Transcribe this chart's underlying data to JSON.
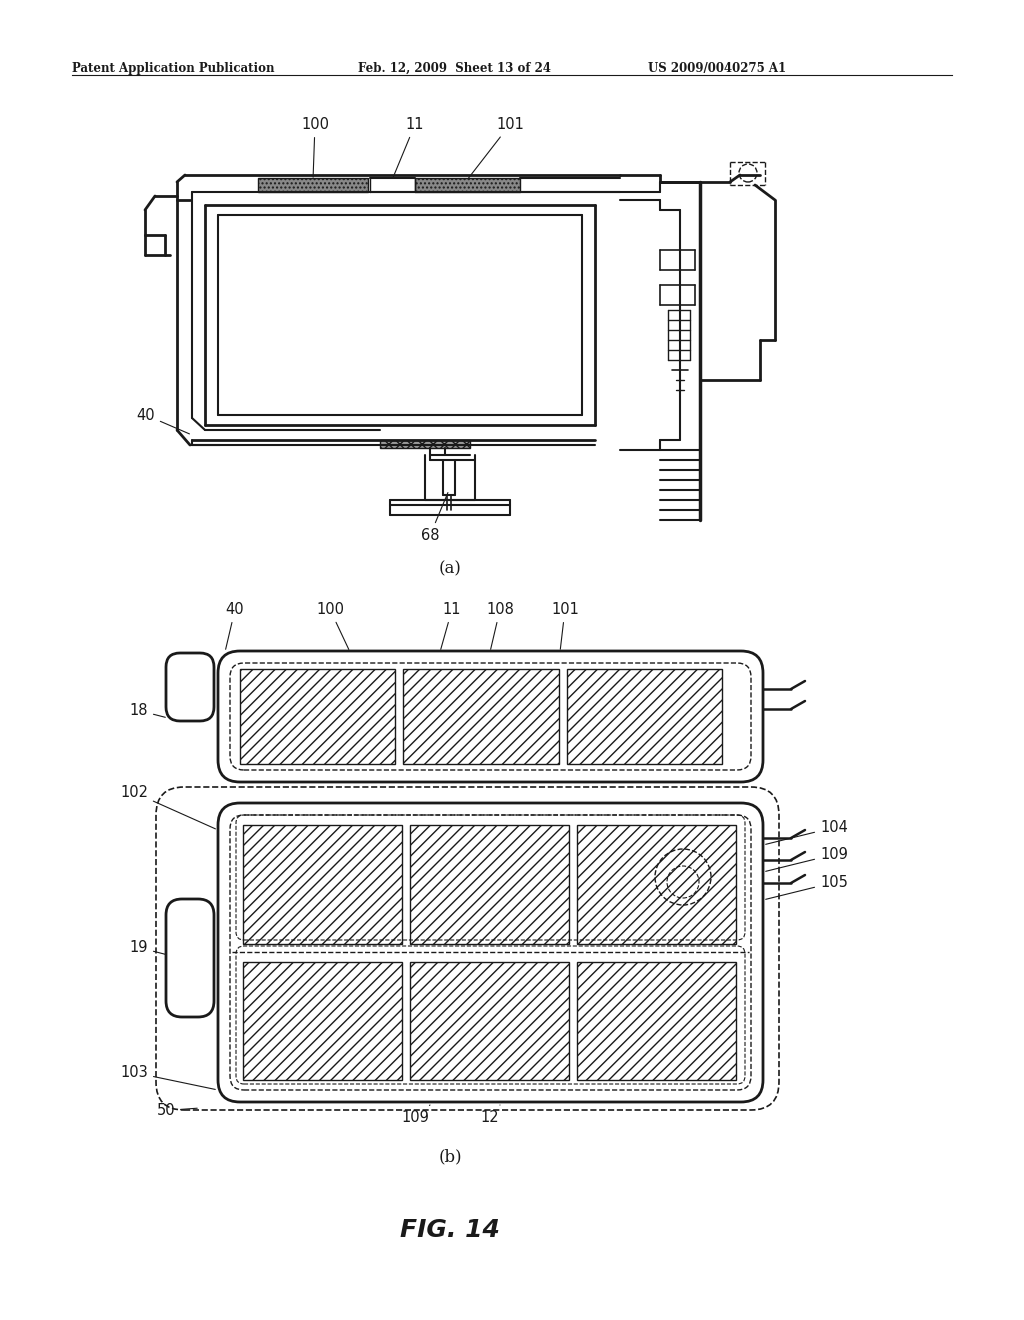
{
  "bg_color": "#ffffff",
  "header_left": "Patent Application Publication",
  "header_mid": "Feb. 12, 2009  Sheet 13 of 24",
  "header_right": "US 2009/0040275 A1",
  "fig_label": "FIG. 14",
  "sub_a": "(a)",
  "sub_b": "(b)",
  "line_color": "#1a1a1a",
  "fig_width": 10.24,
  "fig_height": 13.2
}
